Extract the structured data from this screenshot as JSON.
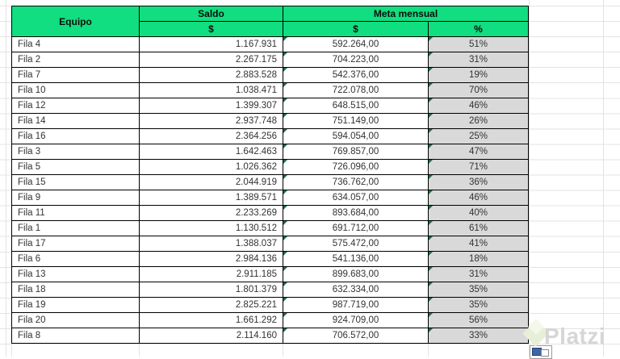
{
  "sheet": {
    "header": {
      "equipo": "Equipo",
      "saldo": "Saldo",
      "meta": "Meta mensual",
      "saldo_sub": "$",
      "meta_sub_currency": "$",
      "meta_sub_pct": "%"
    },
    "rows": [
      {
        "equipo": "Fila 4",
        "saldo": "1.167.931",
        "meta": "592.264,00",
        "pct": "51%"
      },
      {
        "equipo": "Fila 2",
        "saldo": "2.267.175",
        "meta": "704.223,00",
        "pct": "31%"
      },
      {
        "equipo": "Fila 7",
        "saldo": "2.883.528",
        "meta": "542.376,00",
        "pct": "19%"
      },
      {
        "equipo": "Fila 10",
        "saldo": "1.038.471",
        "meta": "722.078,00",
        "pct": "70%"
      },
      {
        "equipo": "Fila 12",
        "saldo": "1.399.307",
        "meta": "648.515,00",
        "pct": "46%"
      },
      {
        "equipo": "Fila 14",
        "saldo": "2.937.748",
        "meta": "751.149,00",
        "pct": "26%"
      },
      {
        "equipo": "Fila 16",
        "saldo": "2.364.256",
        "meta": "594.054,00",
        "pct": "25%"
      },
      {
        "equipo": "Fila 3",
        "saldo": "1.642.463",
        "meta": "769.857,00",
        "pct": "47%"
      },
      {
        "equipo": "Fila 5",
        "saldo": "1.026.362",
        "meta": "726.096,00",
        "pct": "71%"
      },
      {
        "equipo": "Fila 15",
        "saldo": "2.044.919",
        "meta": "736.762,00",
        "pct": "36%"
      },
      {
        "equipo": "Fila 9",
        "saldo": "1.389.571",
        "meta": "634.057,00",
        "pct": "46%"
      },
      {
        "equipo": "Fila 11",
        "saldo": "2.233.269",
        "meta": "893.684,00",
        "pct": "40%"
      },
      {
        "equipo": "Fila 1",
        "saldo": "1.130.512",
        "meta": "691.712,00",
        "pct": "61%"
      },
      {
        "equipo": "Fila 17",
        "saldo": "1.388.037",
        "meta": "575.472,00",
        "pct": "41%"
      },
      {
        "equipo": "Fila 6",
        "saldo": "2.984.136",
        "meta": "541.136,00",
        "pct": "18%"
      },
      {
        "equipo": "Fila 13",
        "saldo": "2.911.185",
        "meta": "899.683,00",
        "pct": "31%"
      },
      {
        "equipo": "Fila 18",
        "saldo": "1.801.379",
        "meta": "632.334,00",
        "pct": "35%"
      },
      {
        "equipo": "Fila 19",
        "saldo": "2.825.221",
        "meta": "987.719,00",
        "pct": "35%"
      },
      {
        "equipo": "Fila 20",
        "saldo": "1.661.292",
        "meta": "924.709,00",
        "pct": "56%"
      },
      {
        "equipo": "Fila 8",
        "saldo": "2.114.160",
        "meta": "706.572,00",
        "pct": "33%"
      }
    ]
  },
  "watermark": {
    "text": "Platzi"
  },
  "colors": {
    "header_green": "#11de80",
    "pct_cell_gray": "#d9d9d9",
    "error_indicator_green": "#1d6f42",
    "grid_line": "#e3e3e3",
    "cell_border": "#000000",
    "watermark_text": "#d6d6d6",
    "watermark_diamond": "#e8efd8"
  }
}
